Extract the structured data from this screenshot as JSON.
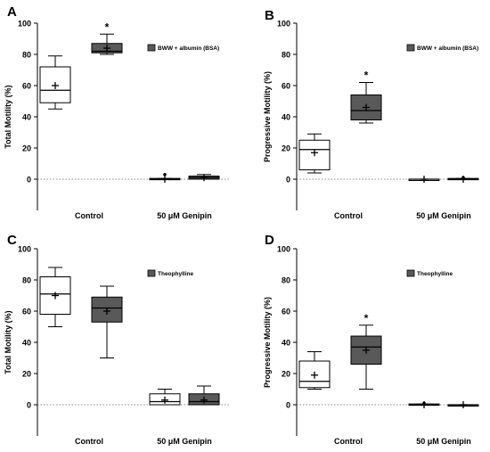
{
  "chart_data": [
    {
      "type": "box",
      "panel_label": "A",
      "ylabel": "Total Motility (%)",
      "ylim": [
        -20,
        100
      ],
      "yticks": [
        0,
        20,
        40,
        60,
        80,
        100
      ],
      "categories": [
        "Control",
        "50 μM Genipin"
      ],
      "legend": [
        {
          "name": "BWW + albumin (BSA)",
          "color": "#595959"
        }
      ],
      "legend_position": "top-right",
      "reference_line": 0,
      "series": [
        {
          "style": "white",
          "boxes": [
            {
              "min": 45,
              "q1": 49,
              "median": 57,
              "q3": 72,
              "max": 79,
              "mean": 60,
              "mark": ""
            },
            {
              "min": 0,
              "q1": 0,
              "median": 0,
              "q3": 0.5,
              "max": 0.5,
              "mean": 0,
              "mark": "",
              "outlier": 3
            }
          ]
        },
        {
          "style": "grey",
          "boxes": [
            {
              "min": 80,
              "q1": 81,
              "median": 82,
              "q3": 87,
              "max": 93,
              "mean": 84,
              "mark": "*"
            },
            {
              "min": 0,
              "q1": 0,
              "median": 1,
              "q3": 2,
              "max": 3,
              "mean": 1,
              "mark": ""
            }
          ]
        }
      ]
    },
    {
      "type": "box",
      "panel_label": "B",
      "ylabel": "Progressive Motility (%)",
      "ylim": [
        -20,
        100
      ],
      "yticks": [
        0,
        20,
        40,
        60,
        80,
        100
      ],
      "categories": [
        "Control",
        "50 μM Genipin"
      ],
      "legend": [
        {
          "name": "BWW + albumin (BSA)",
          "color": "#595959"
        }
      ],
      "legend_position": "top-right",
      "reference_line": 0,
      "series": [
        {
          "style": "white",
          "boxes": [
            {
              "min": 4,
              "q1": 6,
              "median": 19,
              "q3": 25,
              "max": 29,
              "mean": 17,
              "mark": ""
            },
            {
              "min": 0,
              "q1": 0,
              "median": 0,
              "q3": 0,
              "max": 0,
              "mean": 0,
              "mark": ""
            }
          ]
        },
        {
          "style": "grey",
          "boxes": [
            {
              "min": 36,
              "q1": 38,
              "median": 44,
              "q3": 54,
              "max": 62,
              "mean": 46,
              "mark": "*"
            },
            {
              "min": 0,
              "q1": 0,
              "median": 0,
              "q3": 0.5,
              "max": 0.5,
              "mean": 0,
              "mark": "",
              "outlier": 1
            }
          ]
        }
      ]
    },
    {
      "type": "box",
      "panel_label": "C",
      "ylabel": "Total Motility (%)",
      "ylim": [
        -20,
        100
      ],
      "yticks": [
        0,
        20,
        40,
        60,
        80,
        100
      ],
      "categories": [
        "Control",
        "50 μM Genipin"
      ],
      "legend": [
        {
          "name": "Theophylline",
          "color": "#595959"
        }
      ],
      "legend_position": "top-right",
      "reference_line": 0,
      "series": [
        {
          "style": "white",
          "boxes": [
            {
              "min": 50,
              "q1": 58,
              "median": 71,
              "q3": 82,
              "max": 88,
              "mean": 70,
              "mark": ""
            },
            {
              "min": 0,
              "q1": 0,
              "median": 2,
              "q3": 7,
              "max": 10,
              "mean": 3,
              "mark": ""
            }
          ]
        },
        {
          "style": "grey",
          "boxes": [
            {
              "min": 30,
              "q1": 53,
              "median": 62,
              "q3": 69,
              "max": 76,
              "mean": 60,
              "mark": ""
            },
            {
              "min": 0,
              "q1": 0,
              "median": 2,
              "q3": 7,
              "max": 12,
              "mean": 3,
              "mark": ""
            }
          ]
        }
      ]
    },
    {
      "type": "box",
      "panel_label": "D",
      "ylabel": "Progressive Motility (%)",
      "ylim": [
        -20,
        100
      ],
      "yticks": [
        0,
        20,
        40,
        60,
        80,
        100
      ],
      "categories": [
        "Control",
        "50 μM Genipin"
      ],
      "legend": [
        {
          "name": "Theophylline",
          "color": "#595959"
        }
      ],
      "legend_position": "top-right",
      "reference_line": 0,
      "series": [
        {
          "style": "white",
          "boxes": [
            {
              "min": 10,
              "q1": 11,
              "median": 15,
              "q3": 28,
              "max": 34,
              "mean": 19,
              "mark": ""
            },
            {
              "min": 0,
              "q1": 0,
              "median": 0,
              "q3": 0.5,
              "max": 0.5,
              "mean": 0,
              "mark": "",
              "outlier": 1
            }
          ]
        },
        {
          "style": "grey",
          "boxes": [
            {
              "min": 10,
              "q1": 26,
              "median": 37,
              "q3": 44,
              "max": 51,
              "mean": 35,
              "mark": "*"
            },
            {
              "min": 0,
              "q1": 0,
              "median": 0,
              "q3": 0,
              "max": 0,
              "mean": 0,
              "mark": ""
            }
          ]
        }
      ]
    }
  ],
  "colors": {
    "white_box": "#ffffff",
    "grey_box": "#595959",
    "ink": "#000000",
    "reference_line": "#666666"
  }
}
